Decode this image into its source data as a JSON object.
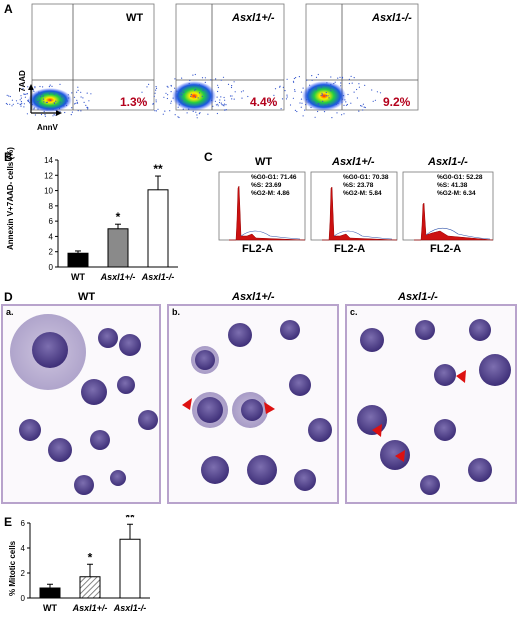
{
  "panel_a": {
    "letter": "A",
    "y_axis_label": "7AAD",
    "x_axis_label": "AnnV",
    "plots": [
      {
        "title": "WT",
        "percent": "1.3%"
      },
      {
        "title": "Asxl1+/-",
        "percent": "4.4%"
      },
      {
        "title": "Asxl1-/-",
        "percent": "9.2%"
      }
    ],
    "tick_labels": [
      "10",
      "10",
      "10",
      "10",
      "10"
    ]
  },
  "panel_b": {
    "letter": "B",
    "significance": [
      "*",
      "**"
    ]
  },
  "panel_c": {
    "letter": "C",
    "x_label": "FL2-A",
    "plots": [
      {
        "title": "WT",
        "stats": [
          "%G0-G1: 71.46",
          "%S: 23.69",
          "%G2-M: 4.86"
        ]
      },
      {
        "title": "Asxl1+/-",
        "stats": [
          "%G0-G1: 70.38",
          "%S: 23.78",
          "%G2-M: 5.84"
        ]
      },
      {
        "title": "Asxl1-/-",
        "stats": [
          "%G0-G1: 52.28",
          "%S: 41.38",
          "%G2-M: 6.34"
        ]
      }
    ]
  },
  "panel_d": {
    "letter": "D",
    "images": [
      {
        "title": "WT",
        "sublabel": "a."
      },
      {
        "title": "Asxl1+/-",
        "sublabel": "b."
      },
      {
        "title": "Asxl1-/-",
        "sublabel": "c."
      }
    ]
  },
  "panel_e": {
    "letter": "E",
    "significance": [
      "*",
      "**"
    ]
  },
  "chart_data": [
    {
      "type": "bar",
      "ylabel": "Annexin V+7AAD- cells (%)",
      "categories": [
        "WT",
        "Asxl1+/-",
        "Asxl1-/-"
      ],
      "values": [
        1.8,
        5.0,
        10.1
      ],
      "errors": [
        0.3,
        0.6,
        1.8
      ],
      "colors": [
        "#000000",
        "#8a8a8a",
        "#ffffff"
      ],
      "ylim": [
        0,
        14
      ],
      "yticks": [
        0,
        2,
        4,
        6,
        8,
        10,
        12,
        14
      ]
    },
    {
      "type": "bar",
      "ylabel": "% Mitotic cells",
      "categories": [
        "WT",
        "Asxl1+/-",
        "Asxl1-/-"
      ],
      "values": [
        0.8,
        1.7,
        4.7
      ],
      "errors": [
        0.3,
        1.0,
        1.2
      ],
      "colors": [
        "#000000",
        "hatched",
        "#ffffff"
      ],
      "ylim": [
        0,
        6
      ],
      "yticks": [
        0,
        2,
        4,
        6
      ]
    }
  ]
}
